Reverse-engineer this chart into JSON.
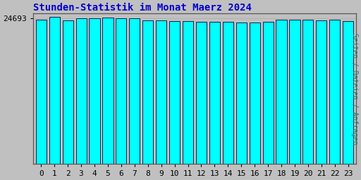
{
  "title": "Stunden-Statistik im Monat Maerz 2024",
  "ylabel": "Seiten / Dateien / Anfragen",
  "xlabel_values": [
    0,
    1,
    2,
    3,
    4,
    5,
    6,
    7,
    8,
    9,
    10,
    11,
    12,
    13,
    14,
    15,
    16,
    17,
    18,
    19,
    20,
    21,
    22,
    23
  ],
  "values": [
    24500,
    24900,
    24400,
    24700,
    24650,
    24800,
    24750,
    24650,
    24350,
    24300,
    24250,
    24200,
    24150,
    24100,
    24050,
    23950,
    23950,
    24100,
    24500,
    24500,
    24450,
    24400,
    24450,
    24250
  ],
  "ytick_label": "24693",
  "ytick_val": 24693,
  "ymin": 0,
  "ymax": 25500,
  "bar_color": "#00FFFF",
  "bar_edge_color": "#1a1a4a",
  "title_color": "#0000CC",
  "ylabel_color": "#008888",
  "bg_color": "#C0C0C0",
  "plot_bg_color": "#C0C0C0",
  "title_fontsize": 10,
  "ylabel_fontsize": 7,
  "tick_fontsize": 8,
  "bar_width": 0.8
}
